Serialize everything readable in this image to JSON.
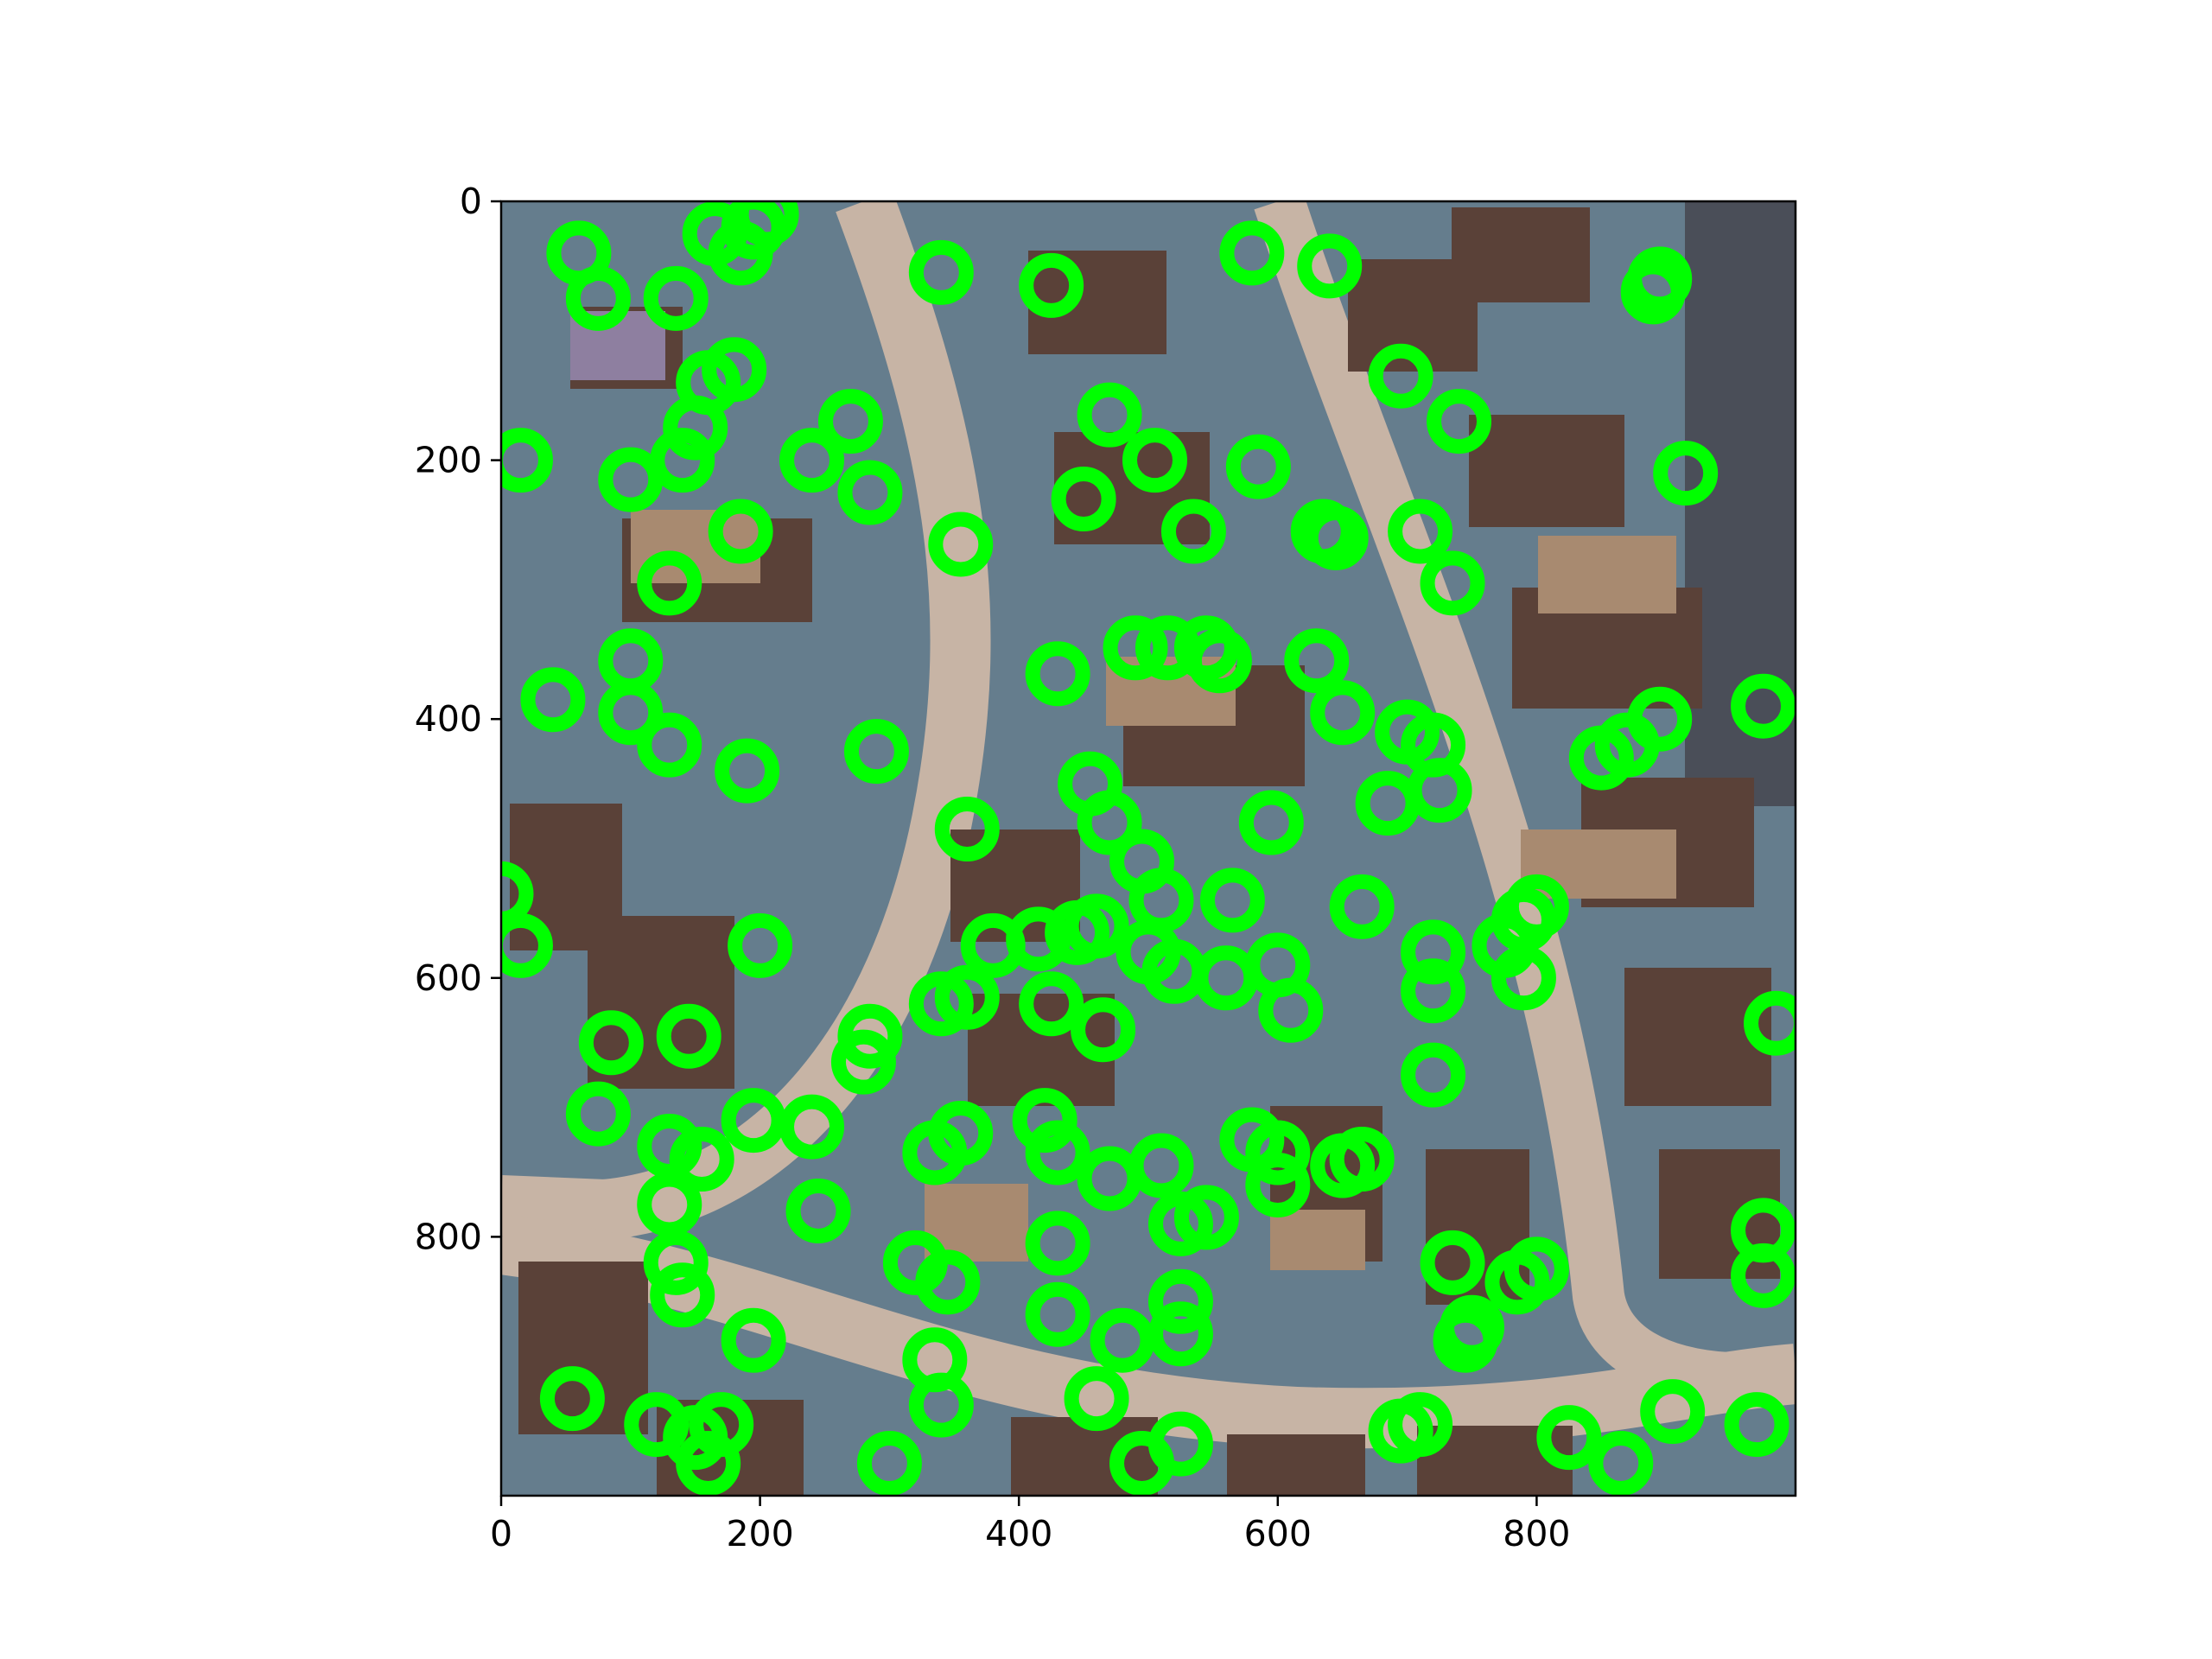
{
  "chart_data": {
    "type": "scatter",
    "title": "",
    "xlabel": "",
    "ylabel": "",
    "xlim": [
      0,
      1000
    ],
    "ylim": [
      1000,
      0
    ],
    "y_axis_inverted": true,
    "xticks": [
      "0",
      "200",
      "400",
      "600",
      "800"
    ],
    "yticks": [
      "0",
      "200",
      "400",
      "600",
      "800"
    ],
    "xtick_values": [
      0,
      200,
      400,
      600,
      800
    ],
    "ytick_values": [
      0,
      200,
      400,
      600,
      800
    ],
    "grid": false,
    "legend": "none",
    "background": "aerial image of a residential neighborhood",
    "marker": "ring",
    "marker_color": "#00ff00",
    "series": [
      {
        "points": [
          [
            60,
            40
          ],
          [
            75,
            75
          ],
          [
            135,
            75
          ],
          [
            165,
            25
          ],
          [
            195,
            20
          ],
          [
            185,
            40
          ],
          [
            205,
            10
          ],
          [
            340,
            55
          ],
          [
            425,
            65
          ],
          [
            580,
            40
          ],
          [
            640,
            50
          ],
          [
            890,
            70
          ],
          [
            895,
            60
          ],
          [
            160,
            140
          ],
          [
            180,
            130
          ],
          [
            150,
            175
          ],
          [
            140,
            200
          ],
          [
            15,
            200
          ],
          [
            100,
            215
          ],
          [
            240,
            200
          ],
          [
            270,
            170
          ],
          [
            285,
            225
          ],
          [
            185,
            255
          ],
          [
            355,
            265
          ],
          [
            130,
            295
          ],
          [
            470,
            165
          ],
          [
            505,
            200
          ],
          [
            450,
            230
          ],
          [
            535,
            255
          ],
          [
            585,
            205
          ],
          [
            695,
            135
          ],
          [
            740,
            170
          ],
          [
            915,
            210
          ],
          [
            645,
            260
          ],
          [
            635,
            255
          ],
          [
            710,
            255
          ],
          [
            735,
            295
          ],
          [
            100,
            355
          ],
          [
            40,
            385
          ],
          [
            100,
            395
          ],
          [
            130,
            420
          ],
          [
            190,
            440
          ],
          [
            290,
            425
          ],
          [
            430,
            365
          ],
          [
            490,
            345
          ],
          [
            515,
            345
          ],
          [
            545,
            345
          ],
          [
            555,
            355
          ],
          [
            630,
            355
          ],
          [
            650,
            395
          ],
          [
            700,
            410
          ],
          [
            720,
            420
          ],
          [
            685,
            465
          ],
          [
            725,
            455
          ],
          [
            850,
            430
          ],
          [
            870,
            420
          ],
          [
            895,
            400
          ],
          [
            975,
            390
          ],
          [
            455,
            450
          ],
          [
            360,
            485
          ],
          [
            470,
            480
          ],
          [
            495,
            510
          ],
          [
            510,
            540
          ],
          [
            595,
            480
          ],
          [
            565,
            540
          ],
          [
            665,
            545
          ],
          [
            0,
            535
          ],
          [
            15,
            575
          ],
          [
            200,
            575
          ],
          [
            380,
            575
          ],
          [
            415,
            570
          ],
          [
            445,
            565
          ],
          [
            460,
            560
          ],
          [
            500,
            580
          ],
          [
            520,
            595
          ],
          [
            560,
            600
          ],
          [
            600,
            590
          ],
          [
            610,
            625
          ],
          [
            720,
            580
          ],
          [
            720,
            610
          ],
          [
            775,
            575
          ],
          [
            790,
            555
          ],
          [
            800,
            545
          ],
          [
            790,
            600
          ],
          [
            985,
            635
          ],
          [
            85,
            650
          ],
          [
            145,
            645
          ],
          [
            285,
            645
          ],
          [
            280,
            665
          ],
          [
            340,
            620
          ],
          [
            360,
            615
          ],
          [
            425,
            620
          ],
          [
            465,
            640
          ],
          [
            720,
            675
          ],
          [
            75,
            705
          ],
          [
            130,
            730
          ],
          [
            155,
            740
          ],
          [
            195,
            710
          ],
          [
            240,
            715
          ],
          [
            130,
            775
          ],
          [
            335,
            735
          ],
          [
            355,
            720
          ],
          [
            420,
            710
          ],
          [
            430,
            735
          ],
          [
            470,
            755
          ],
          [
            510,
            745
          ],
          [
            580,
            725
          ],
          [
            600,
            735
          ],
          [
            600,
            760
          ],
          [
            650,
            745
          ],
          [
            665,
            740
          ],
          [
            245,
            780
          ],
          [
            135,
            820
          ],
          [
            140,
            845
          ],
          [
            195,
            880
          ],
          [
            320,
            820
          ],
          [
            345,
            835
          ],
          [
            430,
            805
          ],
          [
            525,
            790
          ],
          [
            545,
            785
          ],
          [
            525,
            850
          ],
          [
            525,
            875
          ],
          [
            735,
            820
          ],
          [
            785,
            835
          ],
          [
            800,
            825
          ],
          [
            750,
            870
          ],
          [
            745,
            880
          ],
          [
            335,
            895
          ],
          [
            430,
            860
          ],
          [
            480,
            880
          ],
          [
            55,
            925
          ],
          [
            340,
            930
          ],
          [
            460,
            925
          ],
          [
            120,
            945
          ],
          [
            150,
            955
          ],
          [
            170,
            945
          ],
          [
            160,
            975
          ],
          [
            300,
            975
          ],
          [
            495,
            975
          ],
          [
            525,
            960
          ],
          [
            695,
            950
          ],
          [
            710,
            945
          ],
          [
            825,
            955
          ],
          [
            865,
            975
          ],
          [
            905,
            935
          ],
          [
            970,
            945
          ],
          [
            975,
            795
          ],
          [
            975,
            830
          ]
        ]
      }
    ]
  }
}
